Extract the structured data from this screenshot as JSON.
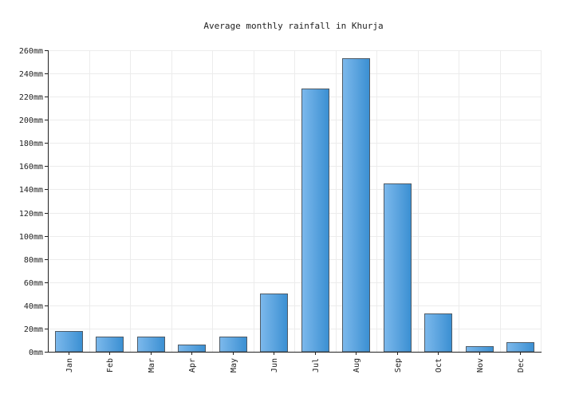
{
  "chart_data": {
    "type": "bar",
    "title": "Average monthly rainfall in Khurja",
    "xlabel": "",
    "ylabel": "",
    "categories": [
      "Jan",
      "Feb",
      "Mar",
      "Apr",
      "May",
      "Jun",
      "Jul",
      "Aug",
      "Sep",
      "Oct",
      "Nov",
      "Dec"
    ],
    "values": [
      18,
      13,
      13,
      6,
      13,
      50,
      227,
      253,
      145,
      33,
      5,
      8
    ],
    "ylim": [
      0,
      260
    ],
    "ytick_values": [
      0,
      20,
      40,
      60,
      80,
      100,
      120,
      140,
      160,
      180,
      200,
      220,
      240,
      260
    ],
    "ytick_labels": [
      "0mm",
      "20mm",
      "40mm",
      "60mm",
      "80mm",
      "100mm",
      "120mm",
      "140mm",
      "160mm",
      "180mm",
      "200mm",
      "220mm",
      "240mm",
      "260mm"
    ],
    "grid": true,
    "legend": "none",
    "colors": {
      "bar_start": "#7db9ec",
      "bar_end": "#3a8fd2",
      "bar_stroke": "#4f5b66",
      "grid": "#ececec",
      "axis": "#222222"
    }
  }
}
